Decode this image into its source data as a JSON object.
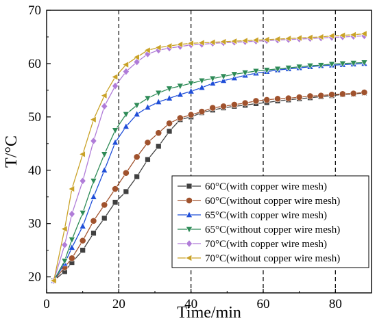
{
  "chart_data": {
    "type": "line",
    "xlabel": "Time/min",
    "ylabel": "T/°C",
    "xlim": [
      0,
      90
    ],
    "ylim": [
      17,
      70
    ],
    "xticks": [
      0,
      20,
      40,
      60,
      80
    ],
    "yticks": [
      20,
      30,
      40,
      50,
      60,
      70
    ],
    "grid": false,
    "reference_lines_x": [
      20,
      40,
      60,
      80
    ],
    "legend_position": "bottom-right",
    "series": [
      {
        "name": "60°C(with copper wire mesh)",
        "color": "#404040",
        "marker": "square",
        "x": [
          2,
          5,
          7,
          10,
          13,
          16,
          19,
          22,
          25,
          28,
          31,
          34,
          37,
          40,
          43,
          46,
          49,
          52,
          55,
          58,
          61,
          64,
          67,
          70,
          73,
          76,
          79,
          82,
          85,
          88
        ],
        "y": [
          19.3,
          21.0,
          22.7,
          25.0,
          28.2,
          31.0,
          34.0,
          36.0,
          38.8,
          42.0,
          44.5,
          47.3,
          49.5,
          50.0,
          50.8,
          51.3,
          51.7,
          52.0,
          52.2,
          52.5,
          52.7,
          53.0,
          53.2,
          53.4,
          53.6,
          53.8,
          54.0,
          54.2,
          54.3,
          54.5
        ]
      },
      {
        "name": "60°C(without copper wire mesh)",
        "color": "#a0522d",
        "marker": "circle",
        "x": [
          2,
          5,
          7,
          10,
          13,
          16,
          19,
          22,
          25,
          28,
          31,
          34,
          37,
          40,
          43,
          46,
          49,
          52,
          55,
          58,
          61,
          64,
          67,
          70,
          73,
          76,
          79,
          82,
          85,
          88
        ],
        "y": [
          19.3,
          21.8,
          23.5,
          26.8,
          30.5,
          33.5,
          36.5,
          39.5,
          42.5,
          45.2,
          47.0,
          48.8,
          49.8,
          50.4,
          51.0,
          51.7,
          52.0,
          52.3,
          52.6,
          53.0,
          53.2,
          53.4,
          53.5,
          53.7,
          53.9,
          54.0,
          54.2,
          54.3,
          54.4,
          54.6
        ]
      },
      {
        "name": "65°C(with copper wire mesh)",
        "color": "#1f4ed8",
        "marker": "triangle-up",
        "x": [
          2,
          5,
          7,
          10,
          13,
          16,
          19,
          22,
          25,
          28,
          31,
          34,
          37,
          40,
          43,
          46,
          49,
          52,
          55,
          58,
          61,
          64,
          67,
          70,
          73,
          76,
          79,
          82,
          85,
          88
        ],
        "y": [
          19.3,
          22.5,
          25.5,
          29.5,
          35.0,
          40.0,
          45.2,
          48.2,
          50.5,
          51.8,
          52.8,
          53.5,
          54.2,
          54.8,
          55.5,
          56.3,
          56.8,
          57.3,
          57.8,
          58.2,
          58.5,
          58.8,
          59.0,
          59.2,
          59.4,
          59.6,
          59.7,
          59.8,
          59.9,
          60.0
        ]
      },
      {
        "name": "65°C(without copper wire mesh)",
        "color": "#2e8b57",
        "marker": "triangle-down",
        "x": [
          2,
          5,
          7,
          10,
          13,
          16,
          19,
          22,
          25,
          28,
          31,
          34,
          37,
          40,
          43,
          46,
          49,
          52,
          55,
          58,
          61,
          64,
          67,
          70,
          73,
          76,
          79,
          82,
          85,
          88
        ],
        "y": [
          19.3,
          23.0,
          27.0,
          32.0,
          38.0,
          43.0,
          47.5,
          50.5,
          52.2,
          53.5,
          54.5,
          55.3,
          55.8,
          56.3,
          56.8,
          57.2,
          57.6,
          58.0,
          58.3,
          58.6,
          58.8,
          59.0,
          59.2,
          59.4,
          59.6,
          59.7,
          59.9,
          60.0,
          60.1,
          60.2
        ]
      },
      {
        "name": "70°C(with copper wire mesh)",
        "color": "#b07cd8",
        "marker": "diamond",
        "x": [
          2,
          5,
          7,
          10,
          13,
          16,
          19,
          22,
          25,
          28,
          31,
          34,
          37,
          40,
          43,
          46,
          49,
          52,
          55,
          58,
          61,
          64,
          67,
          70,
          73,
          76,
          79,
          82,
          85,
          88
        ],
        "y": [
          19.3,
          26.0,
          31.8,
          38.0,
          45.5,
          52.0,
          55.8,
          58.5,
          60.3,
          61.8,
          62.5,
          62.9,
          63.2,
          63.5,
          63.6,
          63.8,
          63.9,
          64.0,
          64.1,
          64.2,
          64.3,
          64.4,
          64.5,
          64.6,
          64.7,
          64.8,
          64.9,
          65.0,
          65.1,
          65.2
        ]
      },
      {
        "name": "70°C(without copper wire mesh)",
        "color": "#c9a227",
        "marker": "triangle-left",
        "x": [
          2,
          5,
          7,
          10,
          13,
          16,
          19,
          22,
          25,
          28,
          31,
          34,
          37,
          40,
          43,
          46,
          49,
          52,
          55,
          58,
          61,
          64,
          67,
          70,
          73,
          76,
          79,
          82,
          85,
          88
        ],
        "y": [
          19.3,
          29.0,
          36.5,
          43.0,
          49.5,
          54.0,
          57.5,
          59.8,
          61.2,
          62.5,
          63.0,
          63.3,
          63.6,
          63.8,
          63.9,
          64.0,
          64.1,
          64.2,
          64.3,
          64.4,
          64.5,
          64.6,
          64.7,
          64.8,
          64.9,
          65.0,
          65.2,
          65.3,
          65.4,
          65.6
        ]
      }
    ]
  }
}
